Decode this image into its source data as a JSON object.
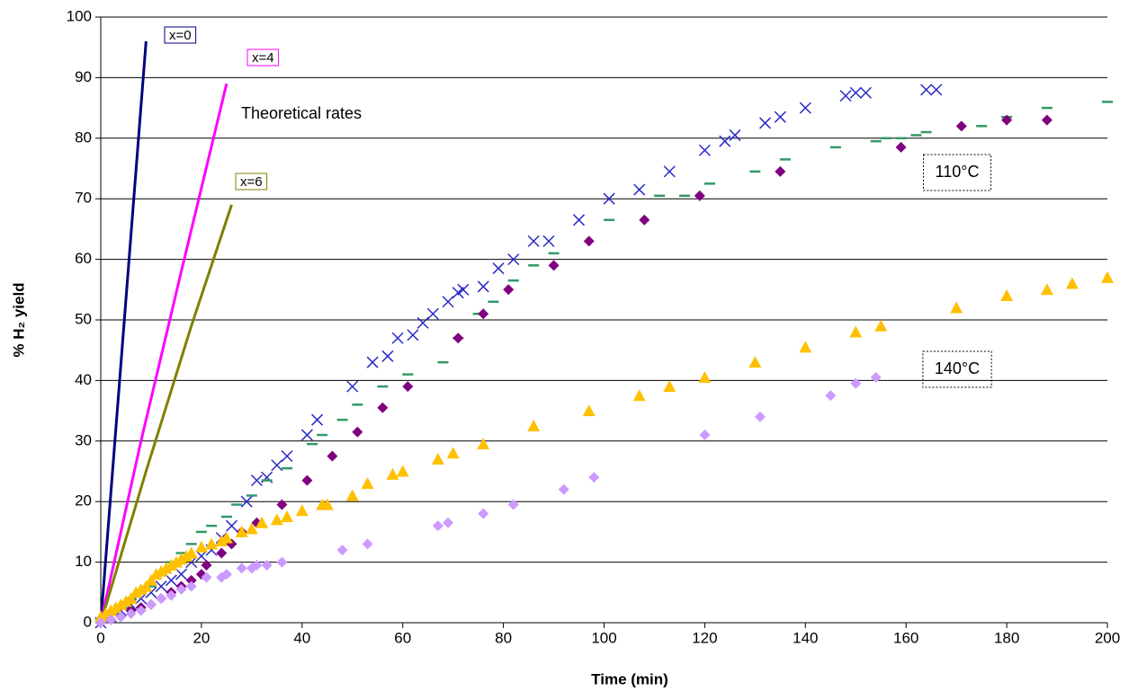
{
  "chart_data": {
    "type": "scatter",
    "xlabel": "Time (min)",
    "ylabel": "% H₂ yield",
    "xlim": [
      0,
      200
    ],
    "ylim": [
      0,
      100
    ],
    "xticks": [
      0,
      20,
      40,
      60,
      80,
      100,
      120,
      140,
      160,
      180,
      200
    ],
    "yticks": [
      0,
      10,
      20,
      30,
      40,
      50,
      60,
      70,
      80,
      90,
      100
    ],
    "grid": true,
    "annotations": [
      {
        "text": "Theoretical rates"
      },
      {
        "text": "110°C",
        "box": "dotted"
      },
      {
        "text": "140°C",
        "box": "dotted"
      }
    ],
    "series": [
      {
        "name": "x=0",
        "mode": "line",
        "color": "#000080",
        "x": [
          0,
          9
        ],
        "values": [
          0,
          96
        ]
      },
      {
        "name": "x=4",
        "mode": "line",
        "color": "#ff00ff",
        "x": [
          0,
          8,
          16,
          25
        ],
        "values": [
          0,
          30,
          58,
          89
        ]
      },
      {
        "name": "x=6",
        "mode": "line",
        "color": "#808000",
        "x": [
          0,
          9,
          18,
          26
        ],
        "values": [
          0,
          25,
          49,
          69
        ]
      },
      {
        "mode": "markers",
        "marker": "x",
        "color": "#2929c8",
        "x": [
          0,
          2,
          4,
          6,
          8,
          10,
          12,
          14,
          16,
          18,
          20,
          22,
          24,
          26,
          29,
          31,
          33,
          35,
          37,
          41,
          43,
          50,
          54,
          57,
          59,
          62,
          64,
          66,
          69,
          71,
          72,
          76,
          79,
          82,
          86,
          89,
          95,
          101,
          107,
          113,
          120,
          124,
          126,
          132,
          135,
          140,
          148,
          150,
          152,
          164,
          166
        ],
        "values": [
          0,
          1,
          2,
          3,
          4,
          5,
          6,
          7,
          8,
          10,
          11,
          12,
          14,
          16,
          20,
          23.5,
          24,
          26,
          27.5,
          31,
          33.5,
          39,
          43,
          44,
          47,
          47.5,
          49.5,
          51,
          53,
          54.5,
          55,
          55.5,
          58.5,
          60,
          63,
          63,
          66.5,
          70,
          71.5,
          74.5,
          78,
          79.5,
          80.5,
          82.5,
          83.5,
          85,
          87,
          87.5,
          87.5,
          88,
          88
        ]
      },
      {
        "mode": "markers",
        "marker": "dash",
        "color": "#339966",
        "x": [
          0,
          2,
          4,
          6,
          8,
          10,
          12,
          14,
          16,
          18,
          20,
          22,
          25,
          27,
          30,
          33,
          37,
          42,
          44,
          48,
          51,
          56,
          61,
          68,
          71,
          75,
          78,
          82,
          86,
          90,
          101,
          111,
          116,
          121,
          130,
          136,
          146,
          154,
          156,
          159,
          162,
          164,
          175,
          180,
          188,
          200
        ],
        "values": [
          0.5,
          1.5,
          2.5,
          4,
          5,
          6,
          8,
          10,
          11.5,
          13,
          15,
          16,
          17.5,
          19.5,
          21,
          23.5,
          25.5,
          29.5,
          31,
          33.5,
          36,
          39,
          41,
          43,
          47,
          51,
          53,
          56.5,
          59,
          61,
          66.5,
          70.5,
          70.5,
          72.5,
          74.5,
          76.5,
          78.5,
          79.5,
          80,
          80,
          80.5,
          81,
          82,
          83.5,
          85,
          86
        ]
      },
      {
        "mode": "markers",
        "marker": "diamond",
        "color": "#800080",
        "x": [
          0,
          2,
          4,
          6,
          8,
          10,
          12,
          14,
          16,
          18,
          20,
          21,
          24,
          26,
          28,
          31,
          36,
          41,
          46,
          51,
          56,
          61,
          71,
          76,
          81,
          90,
          97,
          108,
          119,
          135,
          159,
          171,
          180,
          188
        ],
        "values": [
          0,
          0.5,
          1,
          2,
          2.5,
          3,
          4,
          5,
          6,
          7,
          8,
          9.5,
          11.5,
          13,
          15,
          16.5,
          19.5,
          23.5,
          27.5,
          31.5,
          35.5,
          39,
          47,
          51,
          55,
          59,
          63,
          66.5,
          70.5,
          74.5,
          78.5,
          82,
          83,
          83
        ]
      },
      {
        "mode": "markers",
        "marker": "triangle",
        "color": "#ffc000",
        "x": [
          0,
          1,
          2,
          3,
          4,
          5,
          6,
          7,
          8,
          9,
          10,
          11,
          12,
          13,
          14,
          15,
          16,
          17,
          18,
          20,
          22,
          24,
          25,
          28,
          30,
          32,
          35,
          37,
          40,
          44,
          45,
          50,
          53,
          58,
          60,
          67,
          70,
          76,
          86,
          97,
          107,
          113,
          120,
          130,
          140,
          150,
          155,
          170,
          180,
          188,
          193,
          200
        ],
        "values": [
          1,
          1.5,
          2,
          2.5,
          3,
          3.5,
          4,
          5,
          5.5,
          6,
          7,
          8,
          8.5,
          9,
          9.5,
          10,
          10.5,
          11,
          11.5,
          12.5,
          13,
          13.5,
          14,
          15,
          15.5,
          16.5,
          17,
          17.5,
          18.5,
          19.5,
          19.5,
          21,
          23,
          24.5,
          25,
          27,
          28,
          29.5,
          32.5,
          35,
          37.5,
          39,
          40.5,
          43,
          45.5,
          48,
          49,
          52,
          54,
          55,
          56,
          57
        ]
      },
      {
        "mode": "markers",
        "marker": "diamond",
        "color": "#cc99ff",
        "x": [
          0,
          2,
          4,
          6,
          8,
          10,
          12,
          14,
          16,
          18,
          21,
          24,
          25,
          28,
          30,
          31,
          33,
          36,
          48,
          53,
          67,
          69,
          76,
          82,
          92,
          98,
          120,
          131,
          145,
          150,
          154
        ],
        "values": [
          0,
          0.5,
          1,
          1.5,
          2,
          3,
          4,
          4.5,
          5.5,
          6,
          7.5,
          7.5,
          8,
          9,
          9,
          9.5,
          9.5,
          10,
          12,
          13,
          16,
          16.5,
          18,
          19.5,
          22,
          24,
          31,
          34,
          37.5,
          39.5,
          40.5
        ]
      }
    ]
  }
}
